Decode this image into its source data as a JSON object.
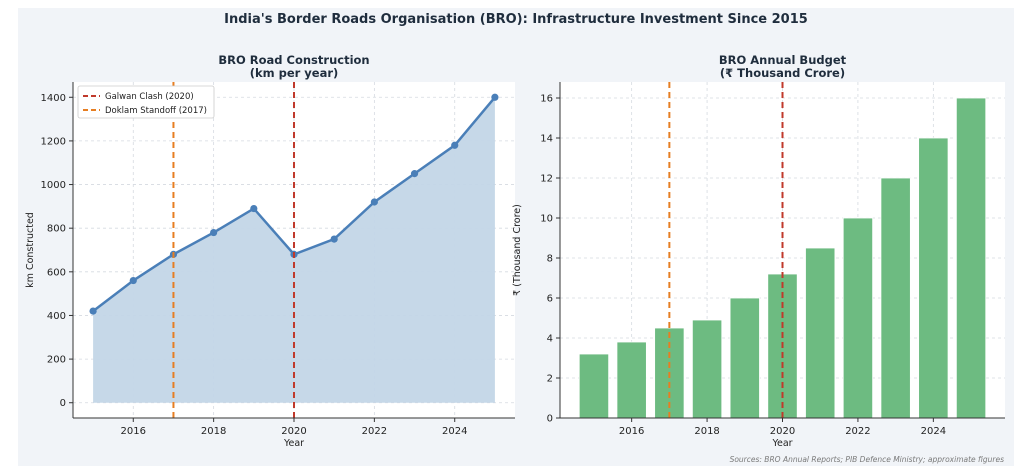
{
  "suptitle": "India's Border Roads Organisation (BRO): Infrastructure Investment Since 2015",
  "source": "Sources: BRO Annual Reports; PIB Defence Ministry; approximate figures",
  "colors": {
    "figure_bg": "#f1f4f8",
    "line": "#4a7fb8",
    "area": "#c3d6e7",
    "bar": "#6dbb81",
    "galwan": "#c0392b",
    "doklam": "#e67e22"
  },
  "chart_data": [
    {
      "type": "area",
      "title": "BRO Road Construction\n(km per year)",
      "xlabel": "Year",
      "ylabel": "km Constructed",
      "x": [
        2015,
        2016,
        2017,
        2018,
        2019,
        2020,
        2021,
        2022,
        2023,
        2024,
        2025
      ],
      "values": [
        420,
        560,
        680,
        780,
        890,
        680,
        750,
        920,
        1050,
        1180,
        1400
      ],
      "xlim": [
        2014.5,
        2025.5
      ],
      "ylim": [
        -70,
        1470
      ],
      "xticks": [
        2016,
        2018,
        2020,
        2022,
        2024
      ],
      "yticks": [
        0,
        200,
        400,
        600,
        800,
        1000,
        1200,
        1400
      ],
      "grid": true,
      "legend_position": "top-left",
      "events": [
        {
          "label": "Galwan Clash (2020)",
          "x": 2020,
          "color": "#c0392b"
        },
        {
          "label": "Doklam Standoff (2017)",
          "x": 2017,
          "color": "#e67e22"
        }
      ]
    },
    {
      "type": "bar",
      "title": "BRO Annual Budget\n(₹ Thousand Crore)",
      "xlabel": "Year",
      "ylabel": "₹ (Thousand Crore)",
      "x": [
        2015,
        2016,
        2017,
        2018,
        2019,
        2020,
        2021,
        2022,
        2023,
        2024,
        2025
      ],
      "values": [
        3.2,
        3.8,
        4.5,
        4.9,
        6.0,
        7.2,
        8.5,
        10.0,
        12.0,
        14.0,
        16.0
      ],
      "xlim": [
        2014.1,
        2025.9
      ],
      "ylim": [
        0,
        16.8
      ],
      "xticks": [
        2016,
        2018,
        2020,
        2022,
        2024
      ],
      "yticks": [
        0,
        2,
        4,
        6,
        8,
        10,
        12,
        14,
        16
      ],
      "grid": true,
      "events": [
        {
          "x": 2020,
          "color": "#c0392b"
        },
        {
          "x": 2017,
          "color": "#e67e22"
        }
      ]
    }
  ]
}
